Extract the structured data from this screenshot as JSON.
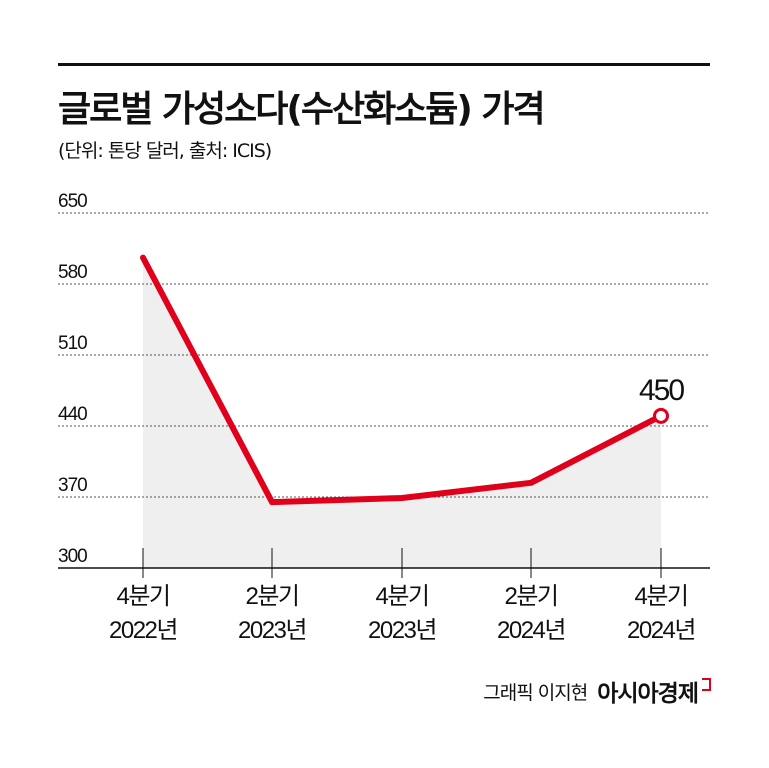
{
  "header": {
    "title": "글로벌 가성소다(수산화소듐) 가격",
    "subtitle": "(단위: 톤당 달러, 출처:  ICIS)"
  },
  "chart_data": {
    "type": "line",
    "title": "글로벌 가성소다(수산화소듐) 가격",
    "xlabel": "",
    "ylabel": "톤당 달러",
    "categories": [
      [
        "4분기",
        "2022년"
      ],
      [
        "2분기",
        "2023년"
      ],
      [
        "4분기",
        "2023년"
      ],
      [
        "2분기",
        "2024년"
      ],
      [
        "4분기",
        "2024년"
      ]
    ],
    "series": [
      {
        "name": "가성소다 가격",
        "values": [
          606,
          365,
          369,
          384,
          450
        ]
      }
    ],
    "ylim": [
      300,
      650
    ],
    "yticks": [
      650,
      580,
      510,
      440,
      370,
      300
    ],
    "grid": true,
    "annotations": [
      {
        "index": 4,
        "label": "450"
      }
    ],
    "colors": {
      "line": "#e0001b",
      "area": "#efefef",
      "grid": "#555555"
    }
  },
  "credit": {
    "author": "그래픽 이지현",
    "logo": "아시아경제"
  }
}
